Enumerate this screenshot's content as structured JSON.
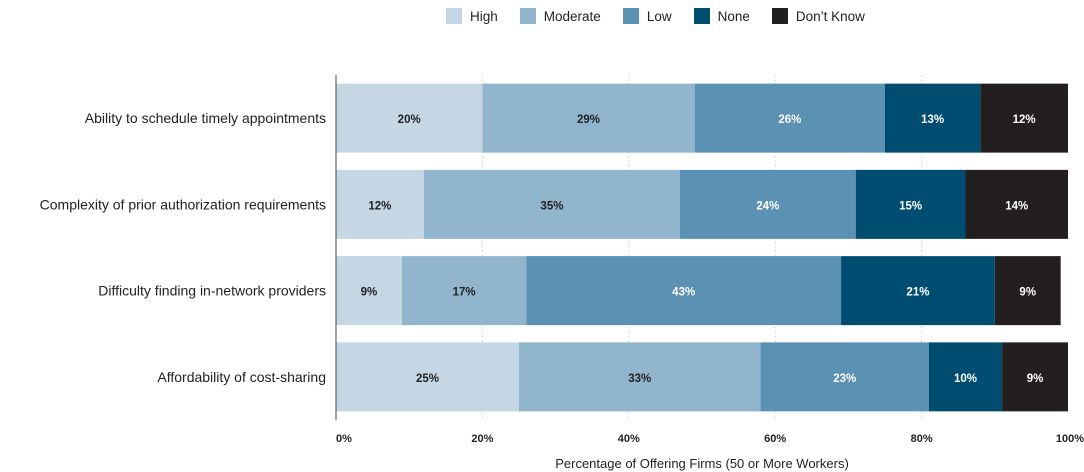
{
  "chart_data": {
    "type": "bar",
    "orientation": "horizontal",
    "stacked": true,
    "categories": [
      "Ability to schedule timely appointments",
      "Complexity of prior authorization requirements",
      "Difficulty finding in-network providers",
      "Affordability of cost-sharing"
    ],
    "series": [
      {
        "name": "High",
        "color": "#c5d7e4",
        "values": [
          20,
          12,
          9,
          25
        ]
      },
      {
        "name": "Moderate",
        "color": "#91b5cc",
        "values": [
          29,
          35,
          17,
          33
        ]
      },
      {
        "name": "Low",
        "color": "#5b91b2",
        "values": [
          26,
          24,
          43,
          23
        ]
      },
      {
        "name": "None",
        "color": "#014d71",
        "values": [
          13,
          15,
          21,
          10
        ]
      },
      {
        "name": "Don’t Know",
        "color": "#231f20",
        "values": [
          12,
          14,
          9,
          9
        ]
      }
    ],
    "data_label_suffix": "%",
    "xlabel": "Percentage of Offering Firms (50 or More Workers)",
    "xticks": [
      "0%",
      "20%",
      "40%",
      "60%",
      "80%",
      "100%"
    ],
    "xlim": [
      0,
      100
    ],
    "grid": "vertical dotted",
    "legend_position": "top"
  }
}
